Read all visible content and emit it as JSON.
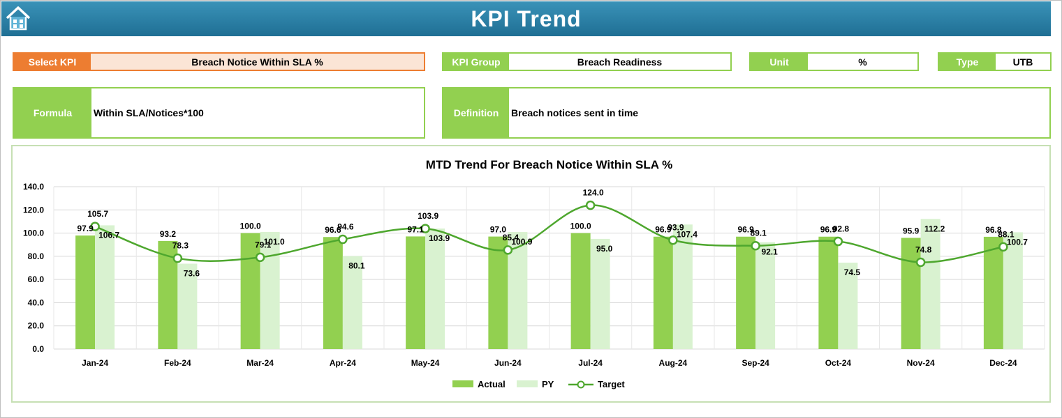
{
  "header": {
    "title": "KPI Trend",
    "home_icon": "home-icon"
  },
  "fields": {
    "select_kpi": {
      "label": "Select KPI",
      "value": "Breach Notice Within SLA %"
    },
    "kpi_group": {
      "label": "KPI Group",
      "value": "Breach Readiness"
    },
    "unit": {
      "label": "Unit",
      "value": "%"
    },
    "type": {
      "label": "Type",
      "value": "UTB"
    },
    "formula": {
      "label": "Formula",
      "value": "Within SLA/Notices*100"
    },
    "definition": {
      "label": "Definition",
      "value": "Breach notices sent in time"
    }
  },
  "colors": {
    "actual": "#92d050",
    "py": "#d9f2d0",
    "target": "#4ea72e",
    "accent": "#ed7d31",
    "header": "#1f6f94"
  },
  "chart_data": {
    "type": "bar",
    "title": "MTD Trend For Breach Notice Within SLA %",
    "categories": [
      "Jan-24",
      "Feb-24",
      "Mar-24",
      "Apr-24",
      "May-24",
      "Jun-24",
      "Jul-24",
      "Aug-24",
      "Sep-24",
      "Oct-24",
      "Nov-24",
      "Dec-24"
    ],
    "series": [
      {
        "name": "Actual",
        "type": "bar",
        "values": [
          97.9,
          93.2,
          100.0,
          96.6,
          97.1,
          97.0,
          100.0,
          96.9,
          96.9,
          96.9,
          95.9,
          96.8
        ]
      },
      {
        "name": "PY",
        "type": "bar",
        "values": [
          106.7,
          73.6,
          101.0,
          80.1,
          103.9,
          100.9,
          95.0,
          107.4,
          92.1,
          74.5,
          112.2,
          100.7
        ]
      },
      {
        "name": "Target",
        "type": "line",
        "values": [
          105.7,
          78.3,
          79.1,
          94.6,
          103.9,
          85.4,
          124.0,
          93.9,
          89.1,
          92.8,
          74.8,
          88.1
        ]
      }
    ],
    "yticks": [
      "140.0",
      "120.0",
      "100.0",
      "80.0",
      "60.0",
      "40.0",
      "20.0",
      "0.0"
    ],
    "ylim": [
      0,
      140
    ],
    "grid": true,
    "legend": "bottom"
  }
}
